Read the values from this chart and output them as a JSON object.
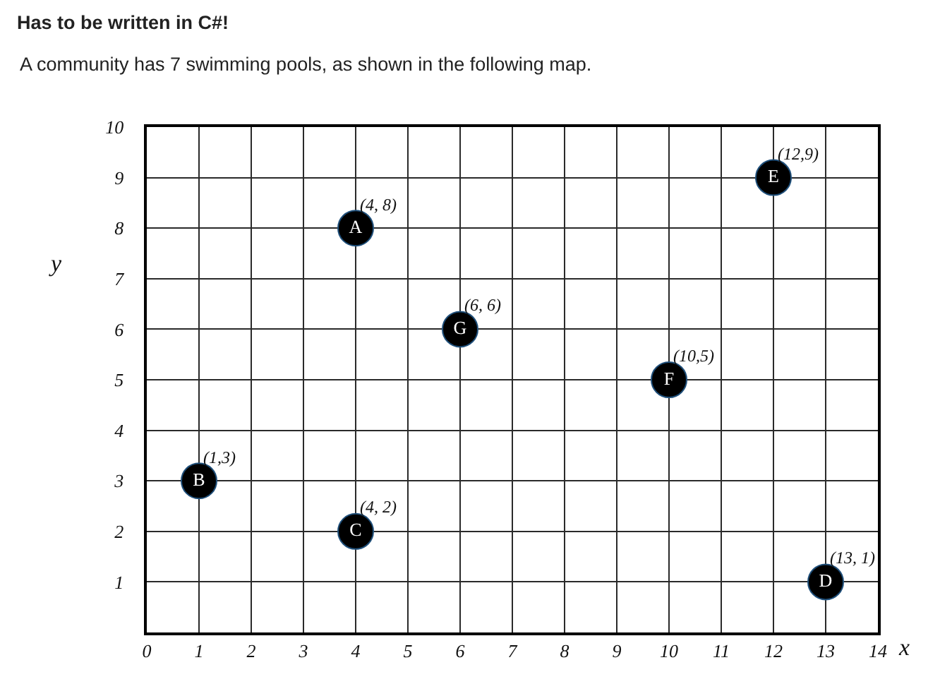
{
  "chart_data": {
    "type": "scatter",
    "title": "Has to be written in C#!",
    "subtitle": "A community has 7 swimming pools, as shown in the following map.",
    "xlabel": "x",
    "ylabel": "y",
    "series": [
      {
        "name": "A",
        "color": "#000000",
        "x": [
          4
        ],
        "values": [
          8
        ]
      },
      {
        "name": "B",
        "color": "#000000",
        "x": [
          1
        ],
        "values": [
          3
        ]
      },
      {
        "name": "C",
        "color": "#000000",
        "x": [
          4
        ],
        "values": [
          2
        ]
      },
      {
        "name": "D",
        "color": "#000000",
        "x": [
          13
        ],
        "values": [
          1
        ]
      },
      {
        "name": "E",
        "color": "#000000",
        "x": [
          12
        ],
        "values": [
          9
        ]
      },
      {
        "name": "F",
        "color": "#000000",
        "x": [
          10
        ],
        "values": [
          5
        ]
      },
      {
        "name": "G",
        "color": "#000000",
        "x": [
          6
        ],
        "values": [
          6
        ]
      }
    ],
    "marker": "circle",
    "grid": true,
    "xlim": [
      0,
      14
    ],
    "ylim": [
      0,
      10
    ],
    "xticks": [
      0,
      1,
      2,
      3,
      4,
      5,
      6,
      7,
      8,
      9,
      10,
      11,
      12,
      13,
      14
    ],
    "yticks": [
      1,
      2,
      3,
      4,
      5,
      6,
      7,
      8,
      9,
      10
    ],
    "annotations": [
      {
        "text": "(4, 8)",
        "x": 4,
        "y": 8
      },
      {
        "text": "(1,3)",
        "x": 1,
        "y": 3
      },
      {
        "text": "(4, 2)",
        "x": 4,
        "y": 2
      },
      {
        "text": "(13, 1)",
        "x": 13,
        "y": 1
      },
      {
        "text": "(12,9)",
        "x": 12,
        "y": 9
      },
      {
        "text": "(10,5)",
        "x": 10,
        "y": 5
      },
      {
        "text": "(6, 6)",
        "x": 6,
        "y": 6
      }
    ]
  }
}
